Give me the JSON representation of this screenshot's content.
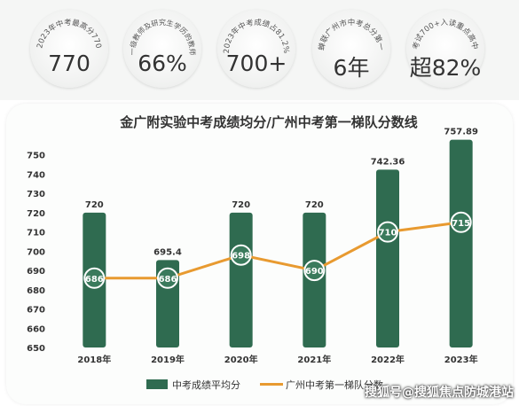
{
  "stats": [
    {
      "caption": "2023年中考最高分770",
      "value": "770"
    },
    {
      "caption": "一级教师及研究生学历的教师",
      "value": "66%"
    },
    {
      "caption": "2023年中考成绩占81.2%",
      "value": "700+"
    },
    {
      "caption": "蝉联广州市中考总分第一",
      "value": "6年"
    },
    {
      "caption": "考试700+入读重点高中",
      "value": "超82%"
    }
  ],
  "chart_data": {
    "type": "bar",
    "title": "金广附实验中考成绩均分/广州中考第一梯队分数线",
    "categories": [
      "2018年",
      "2019年",
      "2020年",
      "2021年",
      "2022年",
      "2023年"
    ],
    "ylim": [
      650,
      760
    ],
    "yticks": [
      650,
      660,
      670,
      680,
      690,
      700,
      710,
      720,
      730,
      740,
      750
    ],
    "grid": false,
    "legend_position": "bottom",
    "series": [
      {
        "name": "中考成绩平均分",
        "type": "bar",
        "color": "#2f6b50",
        "values": [
          720,
          695.4,
          720,
          720,
          742.36,
          757.89
        ],
        "labels": [
          "720",
          "695.4",
          "720",
          "720",
          "742.36",
          "757.89"
        ]
      },
      {
        "name": "广州中考第一梯队分数",
        "type": "line",
        "color": "#e89a30",
        "values": [
          686,
          686,
          698,
          690,
          710,
          715
        ]
      }
    ]
  },
  "watermark": "搜狐号@搜狐焦点防城港站"
}
